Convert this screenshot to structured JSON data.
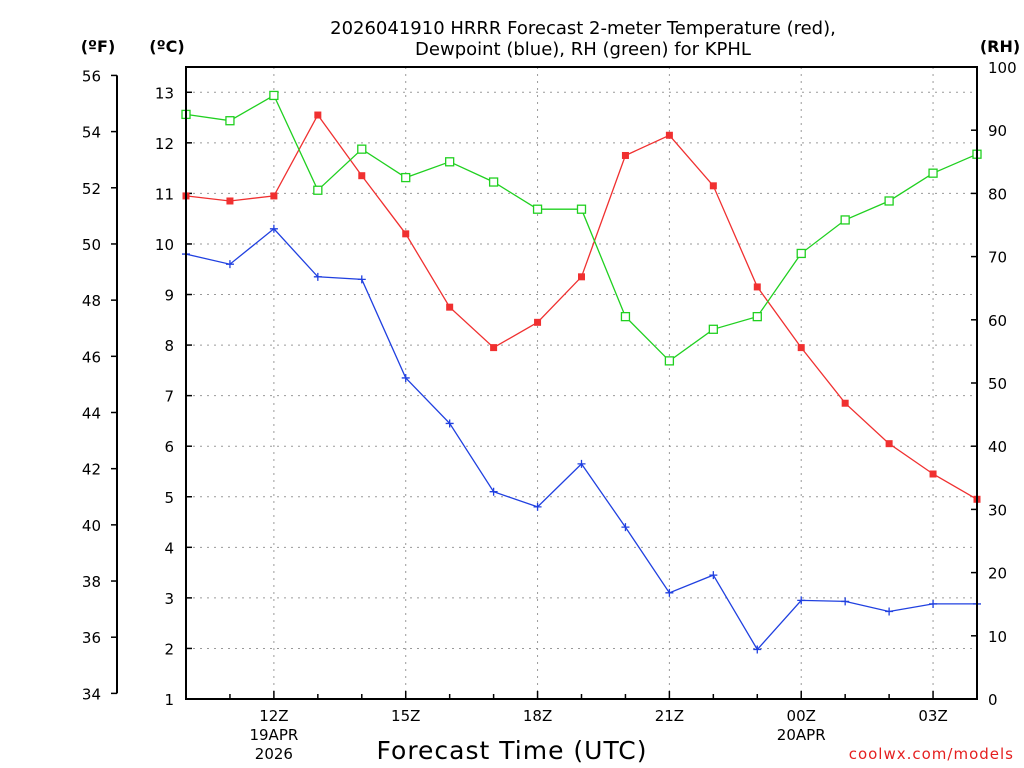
{
  "chart_data": {
    "type": "line",
    "title_lines": [
      "2026041910 HRRR Forecast 2-meter Temperature (red),",
      "Dewpoint (blue), RH (green) for KPHL"
    ],
    "unit_labels": {
      "fahrenheit": "(ºF)",
      "celsius": "(ºC)",
      "rh": "(RH)"
    },
    "xlabel": "Forecast Time (UTC)",
    "credit": "coolwx.com/models",
    "x_hours": [
      10,
      11,
      12,
      13,
      14,
      15,
      16,
      17,
      18,
      19,
      20,
      21,
      22,
      23,
      24,
      25,
      26,
      27,
      28
    ],
    "xlim": [
      10,
      28
    ],
    "x_ticks": [
      {
        "hour": 12,
        "label": "12Z",
        "sub1": "19APR",
        "sub2": "2026"
      },
      {
        "hour": 15,
        "label": "15Z",
        "sub1": "",
        "sub2": ""
      },
      {
        "hour": 18,
        "label": "18Z",
        "sub1": "",
        "sub2": ""
      },
      {
        "hour": 21,
        "label": "21Z",
        "sub1": "",
        "sub2": ""
      },
      {
        "hour": 24,
        "label": "00Z",
        "sub1": "20APR",
        "sub2": ""
      },
      {
        "hour": 27,
        "label": "03Z",
        "sub1": "",
        "sub2": ""
      }
    ],
    "celsius_axis": {
      "ylim": [
        1,
        13.5
      ],
      "ticks": [
        1,
        2,
        3,
        4,
        5,
        6,
        7,
        8,
        9,
        10,
        11,
        12,
        13
      ]
    },
    "fahrenheit_axis": {
      "ylim": [
        33.8,
        56.3
      ],
      "ticks": [
        34,
        36,
        38,
        40,
        42,
        44,
        46,
        48,
        50,
        52,
        54,
        56
      ]
    },
    "rh_axis": {
      "ylim": [
        0,
        100
      ],
      "ticks": [
        0,
        10,
        20,
        30,
        40,
        50,
        60,
        70,
        80,
        90,
        100
      ]
    },
    "series": [
      {
        "name": "Temperature",
        "axis": "celsius",
        "color": "#f03030",
        "marker": "filled-square",
        "values": [
          10.95,
          10.85,
          10.95,
          12.55,
          11.35,
          10.2,
          8.75,
          7.95,
          8.45,
          9.35,
          11.75,
          12.15,
          11.15,
          9.15,
          7.95,
          6.85,
          6.05,
          5.45,
          4.95
        ]
      },
      {
        "name": "Dewpoint",
        "axis": "celsius",
        "color": "#2040e0",
        "marker": "plus",
        "values": [
          9.8,
          9.6,
          10.3,
          9.35,
          9.3,
          7.35,
          6.45,
          5.1,
          4.8,
          5.65,
          4.4,
          3.1,
          3.45,
          1.98,
          2.95,
          2.93,
          2.73,
          2.88,
          2.88
        ]
      },
      {
        "name": "Relative Humidity",
        "axis": "rh",
        "color": "#20d020",
        "marker": "open-square",
        "values": [
          92.5,
          91.5,
          95.5,
          80.5,
          87,
          82.5,
          85,
          81.8,
          77.5,
          77.5,
          60.5,
          53.5,
          58.5,
          60.5,
          70.5,
          75.8,
          78.8,
          83.2,
          86.2
        ]
      }
    ]
  }
}
